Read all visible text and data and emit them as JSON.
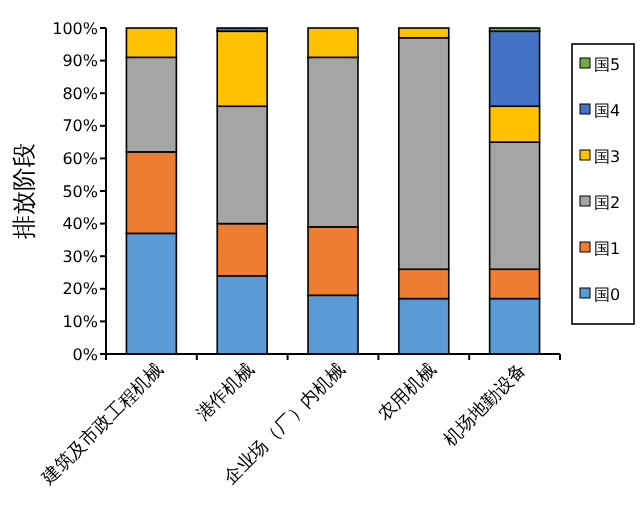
{
  "chart_data": {
    "type": "bar",
    "stacked": true,
    "ylabel": "排放阶段",
    "categories": [
      "建筑及市政工程机械",
      "港作机械",
      "企业场（厂）内机械",
      "农用机械",
      "机场地勤设备"
    ],
    "series": [
      {
        "name": "国0",
        "color": "#5b9bd5",
        "values": [
          37,
          24,
          18,
          17,
          17
        ]
      },
      {
        "name": "国1",
        "color": "#ed7d31",
        "values": [
          25,
          16,
          21,
          9,
          9
        ]
      },
      {
        "name": "国2",
        "color": "#a5a5a5",
        "values": [
          29,
          36,
          52,
          71,
          39
        ]
      },
      {
        "name": "国3",
        "color": "#ffc000",
        "values": [
          9,
          23,
          9,
          3,
          11
        ]
      },
      {
        "name": "国4",
        "color": "#4472c4",
        "values": [
          0,
          1,
          0,
          0,
          23
        ]
      },
      {
        "name": "国5",
        "color": "#70ad47",
        "values": [
          0,
          0,
          0,
          0,
          1
        ]
      }
    ],
    "ylim": [
      0,
      100
    ],
    "yticks": [
      {
        "value": 0,
        "label": "0%"
      },
      {
        "value": 10,
        "label": "10%"
      },
      {
        "value": 20,
        "label": "20%"
      },
      {
        "value": 30,
        "label": "30%"
      },
      {
        "value": 40,
        "label": "40%"
      },
      {
        "value": 50,
        "label": "50%"
      },
      {
        "value": 60,
        "label": "60%"
      },
      {
        "value": 70,
        "label": "70%"
      },
      {
        "value": 80,
        "label": "80%"
      },
      {
        "value": 90,
        "label": "90%"
      },
      {
        "value": 100,
        "label": "100%"
      }
    ],
    "legend": "right",
    "grid": false
  }
}
